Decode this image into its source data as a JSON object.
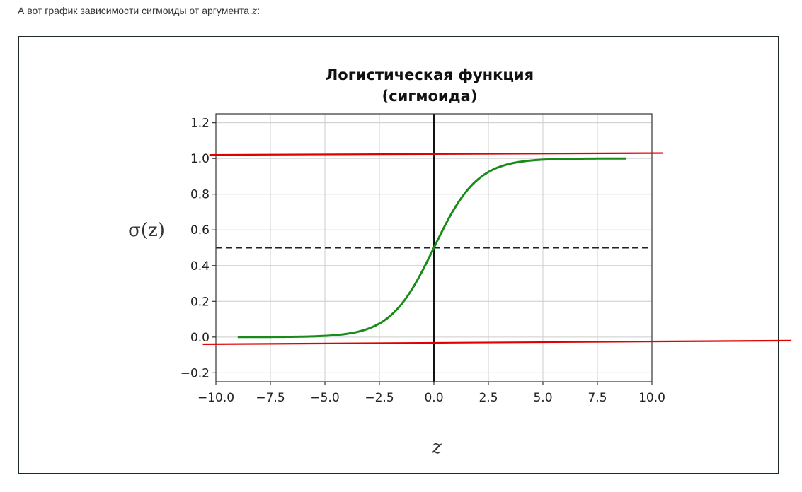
{
  "intro": {
    "text": "А вот график зависимости сигмоиды от аргумента ",
    "var": "z",
    "colon": ":"
  },
  "chart_data": {
    "type": "line",
    "title_line1": "Логистическая функция",
    "title_line2": "(сигмоида)",
    "xlabel": "z",
    "ylabel": "σ(z)",
    "xlim": [
      -10,
      10
    ],
    "ylim": [
      -0.25,
      1.25
    ],
    "x_ticks": [
      -10,
      -7.5,
      -5,
      -2.5,
      0,
      2.5,
      5,
      7.5,
      10
    ],
    "x_tick_labels": [
      "−10.0",
      "−7.5",
      "−5.0",
      "−2.5",
      "0.0",
      "2.5",
      "5.0",
      "7.5",
      "10.0"
    ],
    "y_ticks": [
      -0.2,
      0,
      0.2,
      0.4,
      0.6,
      0.8,
      1.0,
      1.2
    ],
    "y_tick_labels": [
      "−0.2",
      "0.0",
      "0.2",
      "0.4",
      "0.6",
      "0.8",
      "1.0",
      "1.2"
    ],
    "grid": true,
    "series": [
      {
        "function": "sigmoid",
        "x_range": [
          -9,
          8.8
        ],
        "color": "#1a8a1a"
      }
    ],
    "reference_lines": [
      {
        "kind": "horizontal",
        "y": 0.5,
        "style": "dashed",
        "color": "#222222"
      },
      {
        "kind": "vertical",
        "x": 0,
        "style": "solid",
        "color": "#111111"
      }
    ],
    "annotations": [
      {
        "kind": "drawn-line",
        "color": "#e00000",
        "from": [
          -10.3,
          1.02
        ],
        "to": [
          10.5,
          1.03
        ]
      },
      {
        "kind": "drawn-line",
        "color": "#e00000",
        "from": [
          -10.6,
          -0.04
        ],
        "to": [
          16.4,
          -0.02
        ]
      }
    ]
  }
}
